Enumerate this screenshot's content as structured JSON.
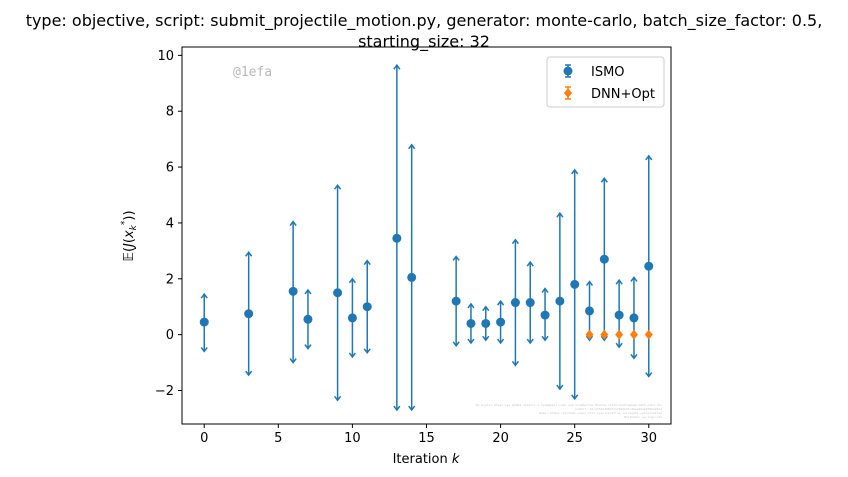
{
  "chart_data": {
    "type": "scatter",
    "title": "type: objective, script: submit_projectile_motion.py, generator: monte-carlo, batch_size_factor: 0.5,\nstarting_size: 32",
    "xlabel": "Iteration k",
    "ylabel": "E(J(x_k^*))",
    "xlim": [
      -1.5,
      31.5
    ],
    "ylim": [
      -3.2,
      10.3
    ],
    "xticks": [
      "0",
      "5",
      "10",
      "15",
      "20",
      "25",
      "30"
    ],
    "yticks": [
      "−2",
      "0",
      "2",
      "4",
      "6",
      "8",
      "10"
    ],
    "grid": false,
    "legend_position": "upper right",
    "watermark": "@1efa",
    "credit_lines": [
      "By Kjetil Olsen Lye @2024 <kjetil.o.lye@gmail.com> and Siddhartha Mishra <sidd.mishra@sam.math.ethz.ch>",
      "Commit: 24c4f0a1390d77a7393b47c4bee45ab0f6b2e5ed",
      "Repo: https://github.com/kjetil-lye/iterative_surrogate_optimization",
      "Hostname: ee-login-01"
    ],
    "series": [
      {
        "name": "ISMO",
        "color": "#1f77b4",
        "marker": "circle",
        "points": [
          {
            "x": 0,
            "y": 0.45,
            "low": -0.6,
            "high": 1.45
          },
          {
            "x": 3,
            "y": 0.75,
            "low": -1.45,
            "high": 2.95
          },
          {
            "x": 6,
            "y": 1.55,
            "low": -1.0,
            "high": 4.05
          },
          {
            "x": 7,
            "y": 0.55,
            "low": -0.5,
            "high": 1.6
          },
          {
            "x": 9,
            "y": 1.5,
            "low": -2.35,
            "high": 5.35
          },
          {
            "x": 10,
            "y": 0.6,
            "low": -0.8,
            "high": 2.0
          },
          {
            "x": 11,
            "y": 1.0,
            "low": -0.65,
            "high": 2.65
          },
          {
            "x": 13,
            "y": 3.45,
            "low": -2.7,
            "high": 9.65
          },
          {
            "x": 14,
            "y": 2.05,
            "low": -2.7,
            "high": 6.8
          },
          {
            "x": 17,
            "y": 1.2,
            "low": -0.4,
            "high": 2.8
          },
          {
            "x": 18,
            "y": 0.4,
            "low": -0.3,
            "high": 1.1
          },
          {
            "x": 19,
            "y": 0.4,
            "low": -0.2,
            "high": 1.0
          },
          {
            "x": 20,
            "y": 0.45,
            "low": -0.3,
            "high": 1.2
          },
          {
            "x": 21,
            "y": 1.15,
            "low": -1.1,
            "high": 3.4
          },
          {
            "x": 22,
            "y": 1.15,
            "low": -0.3,
            "high": 2.6
          },
          {
            "x": 23,
            "y": 0.7,
            "low": -0.2,
            "high": 1.65
          },
          {
            "x": 24,
            "y": 1.2,
            "low": -1.95,
            "high": 4.35
          },
          {
            "x": 25,
            "y": 1.8,
            "low": -2.3,
            "high": 5.9
          },
          {
            "x": 26,
            "y": 0.85,
            "low": -0.2,
            "high": 1.9
          },
          {
            "x": 27,
            "y": 2.7,
            "low": -0.2,
            "high": 5.6
          },
          {
            "x": 28,
            "y": 0.7,
            "low": -0.45,
            "high": 1.95
          },
          {
            "x": 29,
            "y": 0.6,
            "low": -0.85,
            "high": 2.05
          },
          {
            "x": 30,
            "y": 2.45,
            "low": -1.5,
            "high": 6.4
          }
        ]
      },
      {
        "name": "DNN+Opt",
        "color": "#ff7f0e",
        "marker": "diamond",
        "points": [
          {
            "x": 26,
            "y": 0.0,
            "low": -0.05,
            "high": 0.05
          },
          {
            "x": 27,
            "y": 0.0,
            "low": -0.05,
            "high": 0.05
          },
          {
            "x": 28,
            "y": 0.0,
            "low": -0.05,
            "high": 0.05
          },
          {
            "x": 29,
            "y": 0.0,
            "low": -0.05,
            "high": 0.05
          },
          {
            "x": 30,
            "y": 0.0,
            "low": -0.05,
            "high": 0.05
          }
        ]
      }
    ]
  }
}
